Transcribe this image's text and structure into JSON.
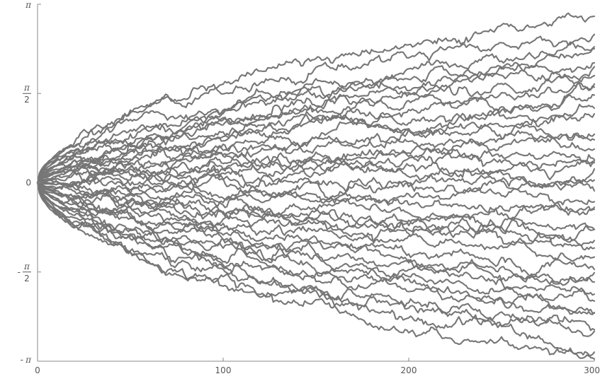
{
  "chart_data": {
    "type": "line",
    "title": "",
    "xlabel": "",
    "ylabel": "",
    "xlim": [
      0,
      300
    ],
    "ylim": [
      -3.14159,
      3.14159
    ],
    "grid": false,
    "legend": "none",
    "line_color": "#767676",
    "x_ticks": [
      {
        "value": 0,
        "label": "0"
      },
      {
        "value": 100,
        "label": "100"
      },
      {
        "value": 200,
        "label": "200"
      },
      {
        "value": 300,
        "label": "300"
      }
    ],
    "y_ticks": [
      {
        "value": 3.14159,
        "prefix": "",
        "text": "π",
        "frac": false
      },
      {
        "value": 1.5708,
        "prefix": "",
        "num": "π",
        "den": "2",
        "frac": true
      },
      {
        "value": 0,
        "prefix": "",
        "text": "0",
        "frac": false
      },
      {
        "value": -1.5708,
        "prefix": "-",
        "num": "π",
        "den": "2",
        "frac": true
      },
      {
        "value": -3.14159,
        "prefix": "-",
        "text": "π",
        "frac": false
      }
    ],
    "x": [
      0,
      300
    ],
    "series_count": 40,
    "series": [
      {
        "values": [
          0,
          2.95
        ]
      },
      {
        "values": [
          0,
          2.65
        ]
      },
      {
        "values": [
          0,
          2.4
        ]
      },
      {
        "values": [
          0,
          2.3
        ]
      },
      {
        "values": [
          0,
          2.1
        ]
      },
      {
        "values": [
          0,
          2.0
        ]
      },
      {
        "values": [
          0,
          1.85
        ]
      },
      {
        "values": [
          0,
          1.7
        ]
      },
      {
        "values": [
          0,
          1.55
        ]
      },
      {
        "values": [
          0,
          1.45
        ]
      },
      {
        "values": [
          0,
          1.3
        ]
      },
      {
        "values": [
          0,
          1.15
        ]
      },
      {
        "values": [
          0,
          1.0
        ]
      },
      {
        "values": [
          0,
          0.85
        ]
      },
      {
        "values": [
          0,
          0.7
        ]
      },
      {
        "values": [
          0,
          0.55
        ]
      },
      {
        "values": [
          0,
          0.45
        ]
      },
      {
        "values": [
          0,
          0.3
        ]
      },
      {
        "values": [
          0,
          0.15
        ]
      },
      {
        "values": [
          0,
          0.05
        ]
      },
      {
        "values": [
          0,
          -0.1
        ]
      },
      {
        "values": [
          0,
          -0.25
        ]
      },
      {
        "values": [
          0,
          -0.4
        ]
      },
      {
        "values": [
          0,
          -0.55
        ]
      },
      {
        "values": [
          0,
          -0.7
        ]
      },
      {
        "values": [
          0,
          -0.85
        ]
      },
      {
        "values": [
          0,
          -1.0
        ]
      },
      {
        "values": [
          0,
          -1.1
        ]
      },
      {
        "values": [
          0,
          -1.3
        ]
      },
      {
        "values": [
          0,
          -1.45
        ]
      },
      {
        "values": [
          0,
          -1.6
        ]
      },
      {
        "values": [
          0,
          -1.75
        ]
      },
      {
        "values": [
          0,
          -1.9
        ]
      },
      {
        "values": [
          0,
          -2.05
        ]
      },
      {
        "values": [
          0,
          -2.2
        ]
      },
      {
        "values": [
          0,
          -2.35
        ]
      },
      {
        "values": [
          0,
          -2.55
        ]
      },
      {
        "values": [
          0,
          -2.7
        ]
      },
      {
        "values": [
          0,
          -2.9
        ]
      },
      {
        "values": [
          0,
          -3.1
        ]
      }
    ]
  }
}
